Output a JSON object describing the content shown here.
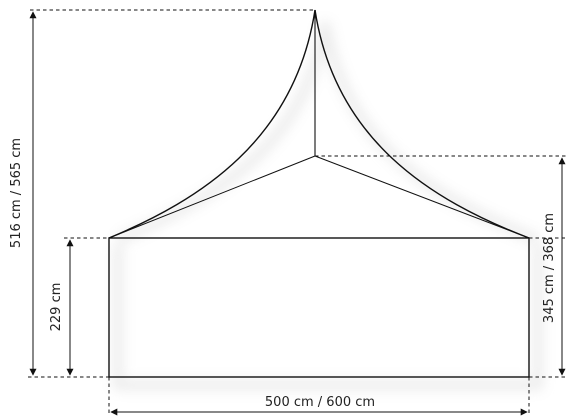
{
  "dimensions": {
    "width_label": "500 cm / 600 cm",
    "total_height_label": "516 cm / 565 cm",
    "wall_height_label": "229 cm",
    "eave_height_label": "345 cm / 368 cm"
  }
}
